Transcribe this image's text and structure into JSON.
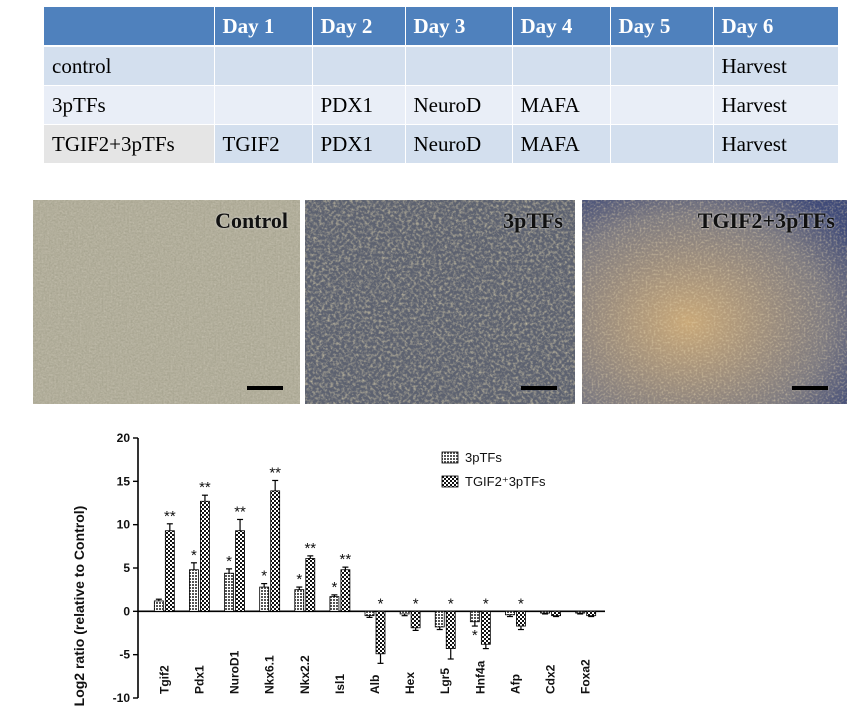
{
  "schedule": {
    "headers": [
      "",
      "Day 1",
      "Day 2",
      "Day 3",
      "Day 4",
      "Day 5",
      "Day 6"
    ],
    "rows": [
      [
        "control",
        "",
        "",
        "",
        "",
        "",
        "Harvest"
      ],
      [
        "3pTFs",
        "",
        "PDX1",
        "NeuroD",
        "MAFA",
        "",
        "Harvest"
      ],
      [
        "TGIF2+3pTFs",
        "TGIF2",
        "PDX1",
        "NeuroD",
        "MAFA",
        "",
        "Harvest"
      ]
    ]
  },
  "micrographs": {
    "labels": [
      "Control",
      "3pTFs",
      "TGIF2+3pTFs"
    ]
  },
  "chart_data": {
    "type": "bar",
    "ylabel": "Log2 ratio (relative to Control)",
    "ylim": [
      -10,
      20
    ],
    "yticks": [
      -10,
      -5,
      0,
      5,
      10,
      15,
      20
    ],
    "categories": [
      "Tgif2",
      "Pdx1",
      "NuroD1",
      "Nkx6.1",
      "Nkx2.2",
      "Isl1",
      "Alb",
      "Hex",
      "Lgr5",
      "Hnf4a",
      "Afp",
      "Cdx2",
      "Foxa2"
    ],
    "legend_position": "top-right",
    "series": [
      {
        "name": "3pTFs",
        "values": [
          1.2,
          4.8,
          4.4,
          2.8,
          2.5,
          1.7,
          -0.5,
          -0.3,
          -1.8,
          -1.2,
          -0.4,
          -0.2,
          -0.2
        ],
        "errors": [
          0.2,
          0.8,
          0.5,
          0.4,
          0.3,
          0.2,
          0.2,
          0.2,
          0.3,
          0.5,
          0.2,
          0.1,
          0.1
        ],
        "markers": [
          "",
          "*",
          "*",
          "*",
          "*",
          "*",
          "",
          "",
          "",
          "*",
          "",
          "",
          ""
        ]
      },
      {
        "name": "TGIF2⁺3pTFs",
        "values": [
          9.3,
          12.7,
          9.3,
          13.9,
          6.1,
          4.8,
          -4.9,
          -1.9,
          -4.3,
          -3.8,
          -1.7,
          -0.5,
          -0.5
        ],
        "errors": [
          0.8,
          0.7,
          1.3,
          1.2,
          0.3,
          0.3,
          1.1,
          0.3,
          1.2,
          0.5,
          0.4,
          0.1,
          0.1
        ],
        "markers": [
          "**",
          "**",
          "**",
          "**",
          "**",
          "**",
          "*",
          "*",
          "*",
          "*",
          "*",
          "",
          ""
        ]
      }
    ]
  }
}
